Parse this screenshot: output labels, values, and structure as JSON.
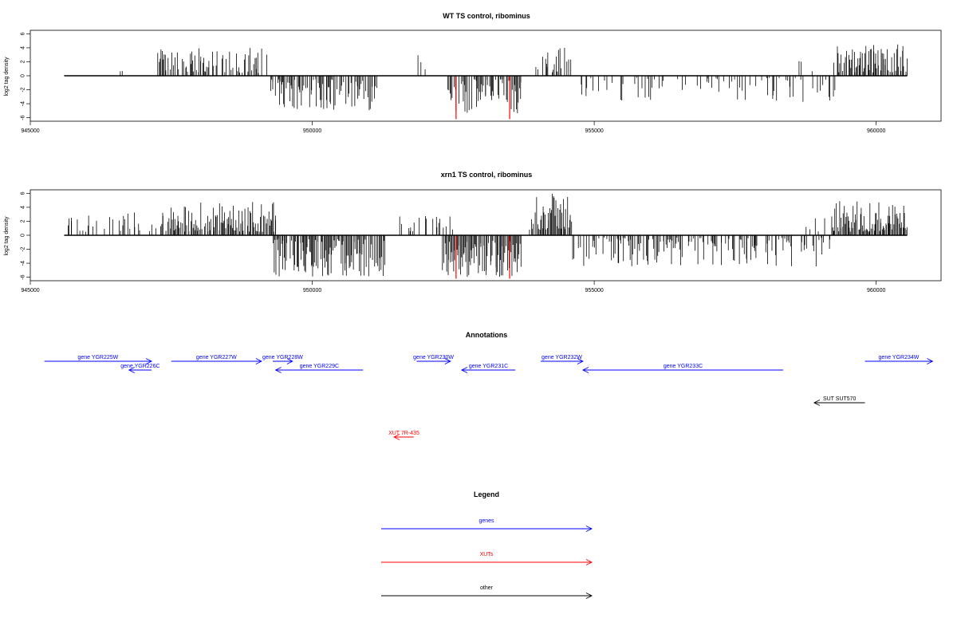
{
  "chart_data": [
    {
      "type": "bar",
      "title": "WT TS control, ribominus",
      "ylabel": "log2 tag density",
      "xlabel": "",
      "xlim": [
        945000,
        961150
      ],
      "ylim": [
        -6.5,
        6.5
      ],
      "x_ticks": [
        945000,
        950000,
        955000,
        960000
      ],
      "y_ticks": [
        6,
        4,
        2,
        0,
        -2,
        -4,
        -6
      ],
      "baseline_range": [
        945600,
        960550
      ],
      "highlight_color": "#ff0000",
      "bar_color": "#000000",
      "highlight_bars": [
        {
          "x": 952550,
          "value": -6.2
        },
        {
          "x": 953500,
          "value": -6.2
        }
      ],
      "regions": [
        {
          "from": 945650,
          "to": 946700,
          "density": 0.08,
          "min": 0.5,
          "max": 1.5,
          "sign": 1
        },
        {
          "from": 947250,
          "to": 949200,
          "density": 0.6,
          "min": 0.4,
          "max": 4.0,
          "sign": 1
        },
        {
          "from": 949250,
          "to": 951150,
          "density": 0.7,
          "min": 0.5,
          "max": 5.0,
          "sign": -1
        },
        {
          "from": 951800,
          "to": 952000,
          "density": 0.2,
          "min": 0.5,
          "max": 3.0,
          "sign": 1
        },
        {
          "from": 952400,
          "to": 953700,
          "density": 0.7,
          "min": 0.5,
          "max": 5.5,
          "sign": -1
        },
        {
          "from": 953950,
          "to": 954600,
          "density": 0.6,
          "min": 0.5,
          "max": 4.5,
          "sign": 1
        },
        {
          "from": 954600,
          "to": 959300,
          "density": 0.25,
          "min": 0.3,
          "max": 3.8,
          "sign": -1
        },
        {
          "from": 958500,
          "to": 959300,
          "density": 0.06,
          "min": 0.5,
          "max": 3.0,
          "sign": 1
        },
        {
          "from": 959300,
          "to": 960550,
          "density": 0.8,
          "min": 0.5,
          "max": 4.5,
          "sign": 1
        }
      ]
    },
    {
      "type": "bar",
      "title": "xrn1 TS control, ribominus",
      "ylabel": "log2 tag density",
      "xlabel": "",
      "xlim": [
        945000,
        961150
      ],
      "ylim": [
        -6.5,
        6.5
      ],
      "x_ticks": [
        945000,
        950000,
        955000,
        960000
      ],
      "y_ticks": [
        6,
        4,
        2,
        0,
        -2,
        -4,
        -6
      ],
      "baseline_range": [
        945600,
        960550
      ],
      "highlight_color": "#ff0000",
      "bar_color": "#000000",
      "highlight_bars": [
        {
          "x": 952550,
          "value": -6.2
        },
        {
          "x": 953500,
          "value": -6.2
        }
      ],
      "regions": [
        {
          "from": 945650,
          "to": 947300,
          "density": 0.2,
          "min": 0.5,
          "max": 3.3,
          "sign": 1
        },
        {
          "from": 947300,
          "to": 949350,
          "density": 0.85,
          "min": 0.5,
          "max": 4.8,
          "sign": 1
        },
        {
          "from": 949300,
          "to": 951300,
          "density": 0.9,
          "min": 0.5,
          "max": 6.0,
          "sign": -1
        },
        {
          "from": 951500,
          "to": 952500,
          "density": 0.3,
          "min": 0.5,
          "max": 3.0,
          "sign": 1
        },
        {
          "from": 952300,
          "to": 953700,
          "density": 0.95,
          "min": 0.8,
          "max": 6.0,
          "sign": -1
        },
        {
          "from": 953850,
          "to": 954600,
          "density": 0.9,
          "min": 0.8,
          "max": 6.0,
          "sign": 1
        },
        {
          "from": 954600,
          "to": 959200,
          "density": 0.5,
          "min": 0.3,
          "max": 4.5,
          "sign": -1
        },
        {
          "from": 958700,
          "to": 959300,
          "density": 0.15,
          "min": 0.5,
          "max": 3.0,
          "sign": 1
        },
        {
          "from": 959200,
          "to": 960550,
          "density": 0.95,
          "min": 0.5,
          "max": 5.0,
          "sign": 1
        }
      ]
    }
  ],
  "annotations": {
    "title": "Annotations",
    "xlim": [
      945000,
      961150
    ],
    "features": [
      {
        "label": "gene YGR225W",
        "start": 945250,
        "end": 947150,
        "strand": "+",
        "lane": 0,
        "kind": "gene"
      },
      {
        "label": "gene YGR226C",
        "start": 946750,
        "end": 947150,
        "strand": "-",
        "lane": 1,
        "kind": "gene"
      },
      {
        "label": "gene YGR227W",
        "start": 947500,
        "end": 949100,
        "strand": "+",
        "lane": 0,
        "kind": "gene"
      },
      {
        "label": "gene YGR228W",
        "start": 949300,
        "end": 949650,
        "strand": "+",
        "lane": 0,
        "kind": "gene"
      },
      {
        "label": "gene YGR229C",
        "start": 949350,
        "end": 950900,
        "strand": "-",
        "lane": 1,
        "kind": "gene"
      },
      {
        "label": "gene YGR230W",
        "start": 951850,
        "end": 952450,
        "strand": "+",
        "lane": 0,
        "kind": "gene"
      },
      {
        "label": "gene YGR231C",
        "start": 952650,
        "end": 953600,
        "strand": "-",
        "lane": 1,
        "kind": "gene"
      },
      {
        "label": "gene YGR232W",
        "start": 954050,
        "end": 954800,
        "strand": "+",
        "lane": 0,
        "kind": "gene"
      },
      {
        "label": "gene YGR233C",
        "start": 954800,
        "end": 958350,
        "strand": "-",
        "lane": 1,
        "kind": "gene"
      },
      {
        "label": "gene YGR234W",
        "start": 959800,
        "end": 961000,
        "strand": "+",
        "lane": 0,
        "kind": "gene"
      },
      {
        "label": "SUT SUT570",
        "start": 958900,
        "end": 959800,
        "strand": "-",
        "lane": 2,
        "kind": "other"
      },
      {
        "label": "XUT 7R-435",
        "start": 951450,
        "end": 951800,
        "strand": "-",
        "lane": 3,
        "kind": "xut"
      }
    ]
  },
  "legend": {
    "title": "Legend",
    "items": [
      {
        "label": "genes",
        "color": "#0000ff"
      },
      {
        "label": "XUTs",
        "color": "#ff0000"
      },
      {
        "label": "other",
        "color": "#000000"
      }
    ]
  },
  "colors": {
    "gene": "#0000ff",
    "xut": "#ff0000",
    "other": "#000000"
  }
}
